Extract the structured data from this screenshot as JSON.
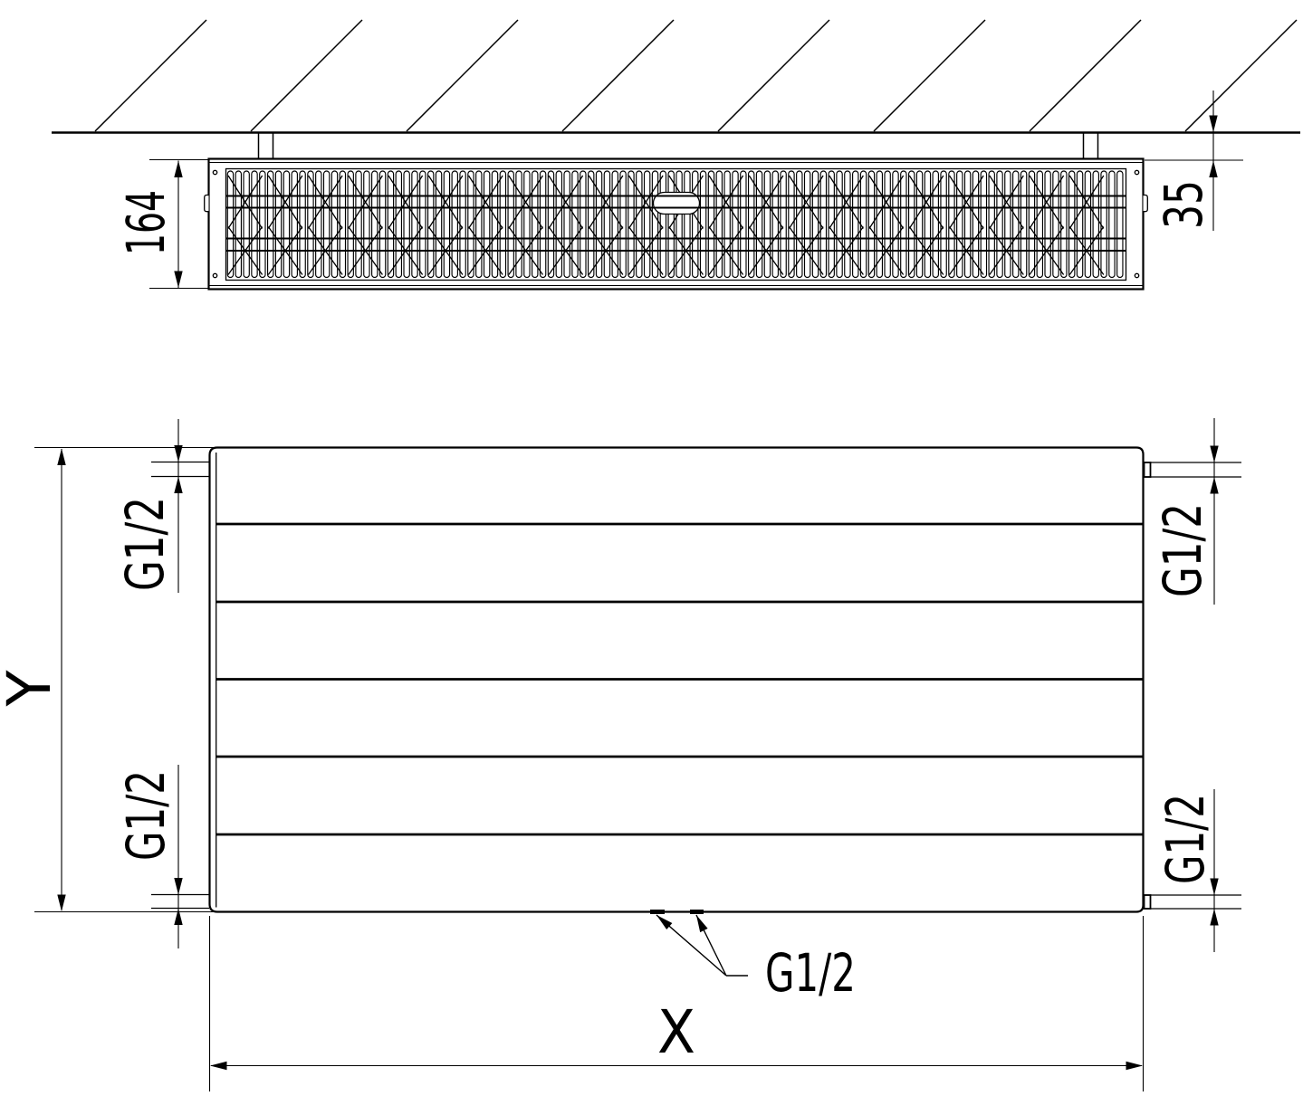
{
  "colors": {
    "ink": "#000000",
    "paper": "#ffffff"
  },
  "top_view": {
    "depth_dim": "164",
    "wall_gap_dim": "35"
  },
  "front_view": {
    "height_dim": "Y",
    "width_dim": "X",
    "connections": {
      "top_left": "G1/2",
      "top_right": "G1/2",
      "bottom_left": "G1/2",
      "bottom_right": "G1/2",
      "bottom_center": "G1/2"
    }
  }
}
